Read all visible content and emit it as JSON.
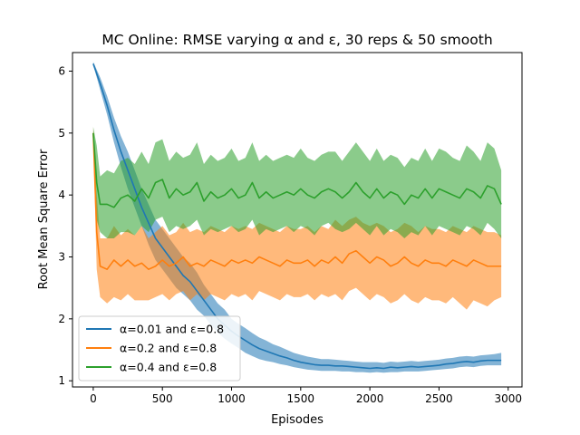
{
  "chart_data": {
    "type": "line",
    "title": "MC Online: RMSE varying α and ε, 30 reps & 50 smooth",
    "xlabel": "Episodes",
    "ylabel": "Root Mean Square Error",
    "xlim": [
      -150,
      3100
    ],
    "ylim": [
      0.9,
      6.3
    ],
    "xticks": [
      0,
      500,
      1000,
      1500,
      2000,
      2500,
      3000
    ],
    "yticks": [
      1,
      2,
      3,
      4,
      5,
      6
    ],
    "grid": false,
    "legend_position": "lower-left",
    "series": [
      {
        "name": "α=0.01 and ε=0.8",
        "color": "#1f77b4",
        "x": [
          0,
          50,
          100,
          150,
          200,
          250,
          300,
          350,
          400,
          450,
          500,
          550,
          600,
          650,
          700,
          750,
          800,
          850,
          900,
          950,
          1000,
          1050,
          1100,
          1150,
          1200,
          1250,
          1300,
          1350,
          1400,
          1450,
          1500,
          1550,
          1600,
          1650,
          1700,
          1750,
          1800,
          1850,
          1900,
          1950,
          2000,
          2050,
          2100,
          2150,
          2200,
          2250,
          2300,
          2350,
          2400,
          2450,
          2500,
          2550,
          2600,
          2650,
          2700,
          2750,
          2800,
          2850,
          2900,
          2950
        ],
        "mean": [
          6.12,
          5.8,
          5.45,
          5.05,
          4.7,
          4.4,
          4.1,
          3.8,
          3.55,
          3.3,
          3.15,
          3.0,
          2.85,
          2.7,
          2.6,
          2.45,
          2.3,
          2.15,
          2.0,
          1.9,
          1.8,
          1.72,
          1.65,
          1.58,
          1.52,
          1.48,
          1.44,
          1.4,
          1.37,
          1.33,
          1.3,
          1.28,
          1.26,
          1.25,
          1.25,
          1.24,
          1.24,
          1.23,
          1.22,
          1.21,
          1.2,
          1.21,
          1.2,
          1.22,
          1.21,
          1.22,
          1.23,
          1.22,
          1.23,
          1.24,
          1.25,
          1.27,
          1.28,
          1.3,
          1.31,
          1.3,
          1.32,
          1.33,
          1.33,
          1.33
        ],
        "lower": [
          6.1,
          5.7,
          5.3,
          4.85,
          4.45,
          4.1,
          3.8,
          3.5,
          3.2,
          2.95,
          2.8,
          2.65,
          2.5,
          2.4,
          2.3,
          2.15,
          2.05,
          1.9,
          1.78,
          1.68,
          1.6,
          1.53,
          1.45,
          1.4,
          1.35,
          1.32,
          1.3,
          1.27,
          1.25,
          1.22,
          1.2,
          1.18,
          1.17,
          1.16,
          1.16,
          1.16,
          1.15,
          1.15,
          1.14,
          1.14,
          1.13,
          1.14,
          1.13,
          1.14,
          1.14,
          1.15,
          1.15,
          1.15,
          1.16,
          1.17,
          1.18,
          1.19,
          1.2,
          1.22,
          1.23,
          1.22,
          1.24,
          1.25,
          1.25,
          1.25
        ],
        "upper": [
          6.15,
          5.9,
          5.6,
          5.25,
          4.95,
          4.7,
          4.4,
          4.1,
          3.85,
          3.6,
          3.45,
          3.3,
          3.15,
          3.0,
          2.9,
          2.75,
          2.55,
          2.4,
          2.25,
          2.15,
          2.0,
          1.92,
          1.85,
          1.77,
          1.7,
          1.65,
          1.59,
          1.55,
          1.5,
          1.45,
          1.42,
          1.39,
          1.37,
          1.35,
          1.35,
          1.34,
          1.33,
          1.32,
          1.31,
          1.3,
          1.3,
          1.3,
          1.29,
          1.31,
          1.3,
          1.31,
          1.32,
          1.31,
          1.32,
          1.33,
          1.34,
          1.36,
          1.37,
          1.39,
          1.4,
          1.39,
          1.41,
          1.42,
          1.43,
          1.45
        ]
      },
      {
        "name": "α=0.2 and ε=0.8",
        "color": "#ff7f0e",
        "x": [
          0,
          25,
          50,
          100,
          150,
          200,
          250,
          300,
          350,
          400,
          450,
          500,
          550,
          600,
          650,
          700,
          750,
          800,
          850,
          900,
          950,
          1000,
          1050,
          1100,
          1150,
          1200,
          1250,
          1300,
          1350,
          1400,
          1450,
          1500,
          1550,
          1600,
          1650,
          1700,
          1750,
          1800,
          1850,
          1900,
          1950,
          2000,
          2050,
          2100,
          2150,
          2200,
          2250,
          2300,
          2350,
          2400,
          2450,
          2500,
          2550,
          2600,
          2650,
          2700,
          2750,
          2800,
          2850,
          2900,
          2950
        ],
        "mean": [
          5.0,
          3.4,
          2.85,
          2.8,
          2.95,
          2.85,
          2.95,
          2.85,
          2.9,
          2.8,
          2.85,
          2.95,
          2.85,
          2.9,
          3.0,
          2.85,
          2.9,
          2.85,
          2.95,
          2.9,
          2.85,
          2.95,
          2.9,
          2.95,
          2.9,
          3.0,
          2.95,
          2.9,
          2.85,
          2.95,
          2.9,
          2.9,
          2.95,
          2.85,
          2.95,
          2.9,
          3.0,
          2.9,
          3.05,
          3.1,
          3.0,
          2.9,
          3.0,
          2.95,
          2.85,
          2.9,
          3.0,
          2.9,
          2.85,
          2.95,
          2.9,
          2.9,
          2.85,
          2.95,
          2.9,
          2.85,
          2.95,
          2.9,
          2.85,
          2.85,
          2.85
        ],
        "lower": [
          4.9,
          2.8,
          2.35,
          2.25,
          2.35,
          2.3,
          2.4,
          2.3,
          2.3,
          2.3,
          2.35,
          2.4,
          2.3,
          2.4,
          2.45,
          2.3,
          2.4,
          2.3,
          2.4,
          2.35,
          2.3,
          2.4,
          2.35,
          2.4,
          2.3,
          2.45,
          2.4,
          2.35,
          2.3,
          2.4,
          2.35,
          2.35,
          2.4,
          2.3,
          2.4,
          2.35,
          2.4,
          2.3,
          2.45,
          2.5,
          2.4,
          2.3,
          2.4,
          2.35,
          2.25,
          2.3,
          2.4,
          2.3,
          2.25,
          2.35,
          2.3,
          2.3,
          2.25,
          2.35,
          2.25,
          2.15,
          2.3,
          2.25,
          2.2,
          2.3,
          2.35
        ],
        "upper": [
          5.1,
          4.0,
          3.3,
          3.3,
          3.5,
          3.35,
          3.45,
          3.35,
          3.5,
          3.3,
          3.4,
          3.5,
          3.35,
          3.4,
          3.55,
          3.4,
          3.45,
          3.4,
          3.5,
          3.45,
          3.4,
          3.5,
          3.45,
          3.5,
          3.45,
          3.55,
          3.5,
          3.45,
          3.4,
          3.5,
          3.45,
          3.45,
          3.5,
          3.4,
          3.5,
          3.45,
          3.6,
          3.5,
          3.6,
          3.65,
          3.55,
          3.5,
          3.55,
          3.5,
          3.4,
          3.45,
          3.55,
          3.5,
          3.4,
          3.5,
          3.45,
          3.45,
          3.4,
          3.5,
          3.45,
          3.4,
          3.5,
          3.45,
          3.4,
          3.4,
          3.35
        ]
      },
      {
        "name": "α=0.4 and ε=0.8",
        "color": "#2ca02c",
        "x": [
          0,
          25,
          50,
          100,
          150,
          200,
          250,
          300,
          350,
          400,
          450,
          500,
          550,
          600,
          650,
          700,
          750,
          800,
          850,
          900,
          950,
          1000,
          1050,
          1100,
          1150,
          1200,
          1250,
          1300,
          1350,
          1400,
          1450,
          1500,
          1550,
          1600,
          1650,
          1700,
          1750,
          1800,
          1850,
          1900,
          1950,
          2000,
          2050,
          2100,
          2150,
          2200,
          2250,
          2300,
          2350,
          2400,
          2450,
          2500,
          2550,
          2600,
          2650,
          2700,
          2750,
          2800,
          2850,
          2900,
          2950
        ],
        "mean": [
          5.0,
          4.2,
          3.85,
          3.85,
          3.8,
          3.95,
          4.0,
          3.9,
          4.1,
          3.95,
          4.2,
          4.25,
          3.95,
          4.1,
          4.0,
          4.05,
          4.2,
          3.9,
          4.05,
          3.95,
          4.0,
          4.1,
          3.95,
          4.0,
          4.2,
          3.95,
          4.05,
          3.95,
          4.0,
          4.05,
          4.0,
          4.1,
          4.0,
          3.95,
          4.05,
          4.1,
          4.05,
          3.95,
          4.05,
          4.2,
          4.05,
          3.95,
          4.1,
          3.95,
          4.05,
          4.0,
          3.85,
          4.0,
          3.95,
          4.1,
          3.95,
          4.1,
          4.05,
          4.0,
          3.95,
          4.1,
          4.05,
          3.95,
          4.15,
          4.1,
          3.85
        ],
        "lower": [
          4.9,
          3.6,
          3.4,
          3.3,
          3.3,
          3.4,
          3.4,
          3.35,
          3.5,
          3.4,
          3.6,
          3.65,
          3.4,
          3.5,
          3.45,
          3.5,
          3.6,
          3.35,
          3.45,
          3.4,
          3.45,
          3.5,
          3.4,
          3.45,
          3.6,
          3.35,
          3.45,
          3.4,
          3.45,
          3.5,
          3.4,
          3.5,
          3.45,
          3.35,
          3.5,
          3.55,
          3.45,
          3.4,
          3.45,
          3.55,
          3.45,
          3.35,
          3.5,
          3.35,
          3.45,
          3.4,
          3.3,
          3.4,
          3.35,
          3.5,
          3.35,
          3.5,
          3.45,
          3.4,
          3.35,
          3.5,
          3.45,
          3.35,
          3.55,
          3.45,
          3.3
        ],
        "upper": [
          5.1,
          4.8,
          4.3,
          4.4,
          4.35,
          4.55,
          4.6,
          4.5,
          4.7,
          4.5,
          4.85,
          4.9,
          4.55,
          4.7,
          4.6,
          4.65,
          4.85,
          4.5,
          4.65,
          4.55,
          4.6,
          4.75,
          4.55,
          4.6,
          4.85,
          4.55,
          4.65,
          4.55,
          4.6,
          4.65,
          4.6,
          4.75,
          4.6,
          4.55,
          4.65,
          4.7,
          4.7,
          4.55,
          4.7,
          4.85,
          4.7,
          4.55,
          4.75,
          4.55,
          4.65,
          4.6,
          4.45,
          4.6,
          4.55,
          4.75,
          4.55,
          4.75,
          4.7,
          4.6,
          4.55,
          4.8,
          4.7,
          4.55,
          4.85,
          4.75,
          4.4
        ]
      }
    ]
  }
}
